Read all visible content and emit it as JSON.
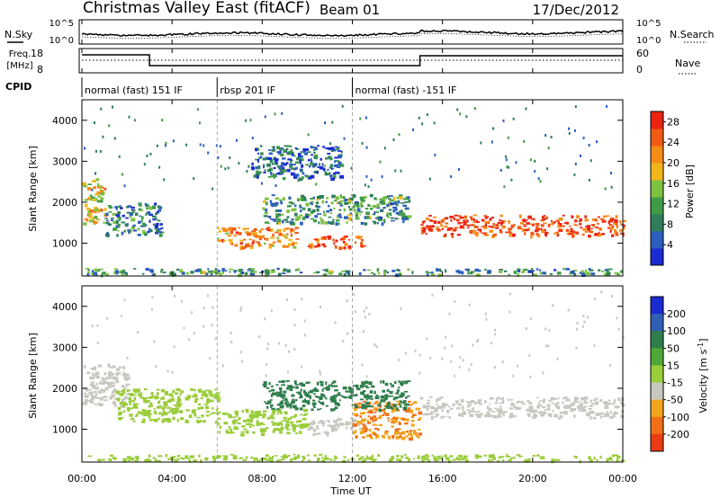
{
  "header": {
    "station": "Christmas Valley East (fitACF)",
    "beam": "Beam 01",
    "date": "17/Dec/2012"
  },
  "noise_panel": {
    "left_label": "N.Sky",
    "right_label": "N.Search",
    "ticks_left": [
      "10^5",
      "10^0"
    ],
    "ticks_right": [
      "10^5",
      "10^0"
    ]
  },
  "freq_panel": {
    "left_label_line1": "Freq.",
    "left_label_line2": "[MHz]",
    "ticks_left": [
      "18",
      "8"
    ],
    "right_label": "Nave",
    "ticks_right": [
      "60",
      "0"
    ]
  },
  "cpid_panel": {
    "label": "CPID",
    "segments": [
      {
        "name": "normal (fast) 151 IF",
        "start_hour": 0
      },
      {
        "name": "rbsp 201 IF",
        "start_hour": 6
      },
      {
        "name": "normal (fast) -151 IF",
        "start_hour": 12
      }
    ]
  },
  "x_axis": {
    "label": "Time UT",
    "ticks": [
      "00:00",
      "04:00",
      "08:00",
      "12:00",
      "16:00",
      "20:00",
      "00:00"
    ]
  },
  "colors": {
    "power": [
      "#1a2cd1",
      "#2b5fbf",
      "#2f7e5c",
      "#3f9b46",
      "#7cc240",
      "#f2b51c",
      "#f58c17",
      "#f25a14",
      "#ec2312"
    ],
    "velocity": [
      "#1a2cd1",
      "#3060b5",
      "#2f7e4c",
      "#4ea838",
      "#9acd3a",
      "#c8c8c0",
      "#f2a51c",
      "#f07018",
      "#ea3c12",
      "#e01010"
    ],
    "ground": "#d7d7c8"
  },
  "chart_data": [
    {
      "type": "heatmap",
      "panel": "power",
      "x_unit": "hours UT",
      "xlim": [
        0,
        24
      ],
      "ylabel": "Slant Range [km]",
      "ylim": [
        200,
        4500
      ],
      "yticks": [
        1000,
        2000,
        3000,
        4000
      ],
      "colorbar_label": "Power [dB]",
      "colorbar_ticks": [
        4,
        8,
        12,
        16,
        20,
        24,
        28
      ],
      "colorbar_range": [
        0,
        30
      ],
      "features": [
        {
          "t": [
            0.0,
            1.0
          ],
          "r": [
            1500,
            2600
          ],
          "value": 18
        },
        {
          "t": [
            1.0,
            3.5
          ],
          "r": [
            1200,
            2000
          ],
          "value": 8
        },
        {
          "t": [
            6.0,
            9.5
          ],
          "r": [
            900,
            1400
          ],
          "value": 22
        },
        {
          "t": [
            10.0,
            12.5
          ],
          "r": [
            900,
            1200
          ],
          "value": 28
        },
        {
          "t": [
            8.0,
            14.5
          ],
          "r": [
            1500,
            2200
          ],
          "value": 10
        },
        {
          "t": [
            7.5,
            11.5
          ],
          "r": [
            2600,
            3400
          ],
          "value": 6
        },
        {
          "t": [
            15.0,
            24.0
          ],
          "r": [
            1200,
            1700
          ],
          "value": 27
        },
        {
          "t": [
            0.0,
            24.0
          ],
          "r": [
            250,
            400
          ],
          "value": 10
        }
      ]
    },
    {
      "type": "heatmap",
      "panel": "velocity",
      "x_unit": "hours UT",
      "xlim": [
        0,
        24
      ],
      "ylabel": "Slant Range [km]",
      "ylim": [
        200,
        4500
      ],
      "yticks": [
        1000,
        2000,
        3000,
        4000
      ],
      "colorbar_label": "Velocity [m s^-1]",
      "colorbar_ticks": [
        200,
        100,
        50,
        15,
        -15,
        -50,
        -100,
        -200
      ],
      "features": [
        {
          "t": [
            0.0,
            2.0
          ],
          "r": [
            1600,
            2600
          ],
          "value": 0
        },
        {
          "t": [
            1.5,
            6.0
          ],
          "r": [
            1200,
            2000
          ],
          "value": 40
        },
        {
          "t": [
            6.0,
            10.0
          ],
          "r": [
            900,
            1500
          ],
          "value": 40
        },
        {
          "t": [
            10.0,
            12.5
          ],
          "r": [
            900,
            1300
          ],
          "value": 0
        },
        {
          "t": [
            12.0,
            15.0
          ],
          "r": [
            800,
            1700
          ],
          "value": -50
        },
        {
          "t": [
            8.0,
            14.5
          ],
          "r": [
            1500,
            2200
          ],
          "value": 60
        },
        {
          "t": [
            15.0,
            24.0
          ],
          "r": [
            1300,
            1800
          ],
          "value": 0
        },
        {
          "t": [
            0.0,
            24.0
          ],
          "r": [
            250,
            400
          ],
          "value": 40
        }
      ]
    }
  ]
}
